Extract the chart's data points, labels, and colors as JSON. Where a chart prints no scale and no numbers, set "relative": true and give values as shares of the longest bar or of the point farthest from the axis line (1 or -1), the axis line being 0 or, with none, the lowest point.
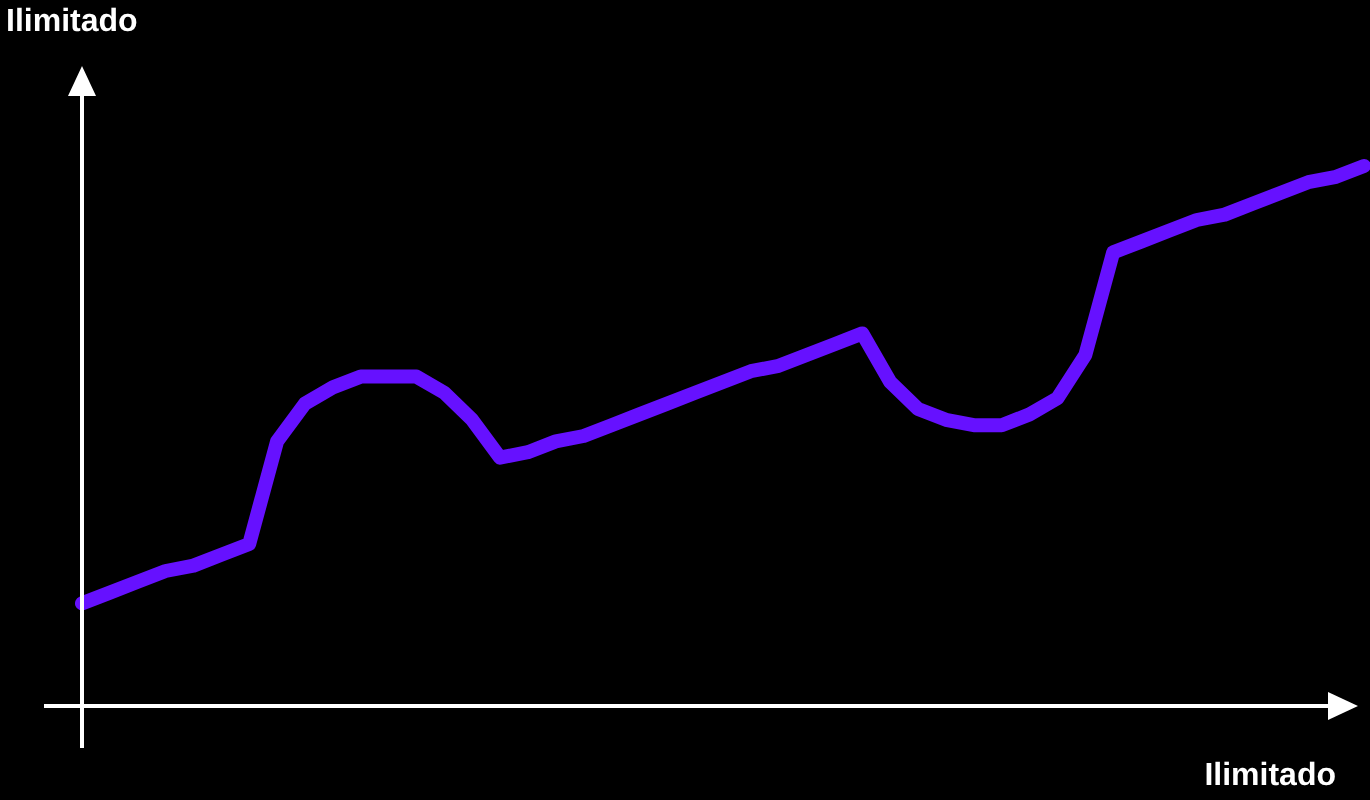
{
  "chart_data": {
    "type": "line",
    "relative": true,
    "xlabel": "Ilimitado",
    "ylabel": "Ilimitado",
    "grid": false,
    "marker": "none",
    "line_style": "solid",
    "categories": [
      null,
      null,
      null,
      null,
      null,
      null,
      null,
      null,
      null,
      null,
      null,
      null,
      null,
      null,
      null,
      null,
      null,
      null,
      null,
      null,
      null,
      null,
      null,
      null,
      null,
      null,
      null,
      null,
      null,
      null,
      null,
      null,
      null,
      null,
      null,
      null,
      null,
      null,
      null,
      null,
      null,
      null,
      null,
      null,
      null,
      null,
      null
    ],
    "series": [
      {
        "color": "#6611ff",
        "values": [
          0.19,
          0.21,
          0.23,
          0.25,
          0.26,
          0.28,
          0.3,
          0.49,
          0.56,
          0.59,
          0.61,
          0.61,
          0.61,
          0.58,
          0.53,
          0.46,
          0.47,
          0.49,
          0.5,
          0.52,
          0.54,
          0.56,
          0.58,
          0.6,
          0.62,
          0.63,
          0.65,
          0.67,
          0.69,
          0.6,
          0.55,
          0.53,
          0.52,
          0.52,
          0.54,
          0.57,
          0.65,
          0.84,
          0.86,
          0.88,
          0.9,
          0.91,
          0.93,
          0.95,
          0.97,
          0.98,
          1
        ]
      }
    ]
  }
}
